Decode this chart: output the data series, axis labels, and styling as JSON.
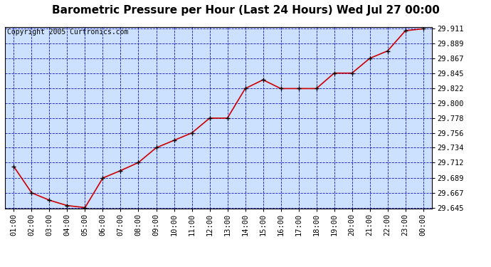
{
  "title": "Barometric Pressure per Hour (Last 24 Hours) Wed Jul 27 00:00",
  "copyright": "Copyright 2005 Curtronics.com",
  "hours": [
    "01:00",
    "02:00",
    "03:00",
    "04:00",
    "05:00",
    "06:00",
    "07:00",
    "08:00",
    "09:00",
    "10:00",
    "11:00",
    "12:00",
    "13:00",
    "14:00",
    "15:00",
    "16:00",
    "17:00",
    "18:00",
    "19:00",
    "20:00",
    "21:00",
    "22:00",
    "23:00",
    "00:00"
  ],
  "values": [
    29.706,
    29.667,
    29.656,
    29.648,
    29.645,
    29.689,
    29.7,
    29.712,
    29.734,
    29.745,
    29.756,
    29.778,
    29.778,
    29.822,
    29.835,
    29.822,
    29.822,
    29.822,
    29.845,
    29.845,
    29.867,
    29.878,
    29.908,
    29.911
  ],
  "ylim_min": 29.645,
  "ylim_max": 29.911,
  "yticks": [
    29.645,
    29.667,
    29.689,
    29.712,
    29.734,
    29.756,
    29.778,
    29.8,
    29.822,
    29.845,
    29.867,
    29.889,
    29.911
  ],
  "line_color": "#cc0000",
  "marker_color": "#000000",
  "bg_color": "#ffffff",
  "plot_bg_color": "#cce0ff",
  "grid_color": "#0000bb",
  "title_fontsize": 11,
  "copyright_fontsize": 7,
  "tick_fontsize": 7.5
}
